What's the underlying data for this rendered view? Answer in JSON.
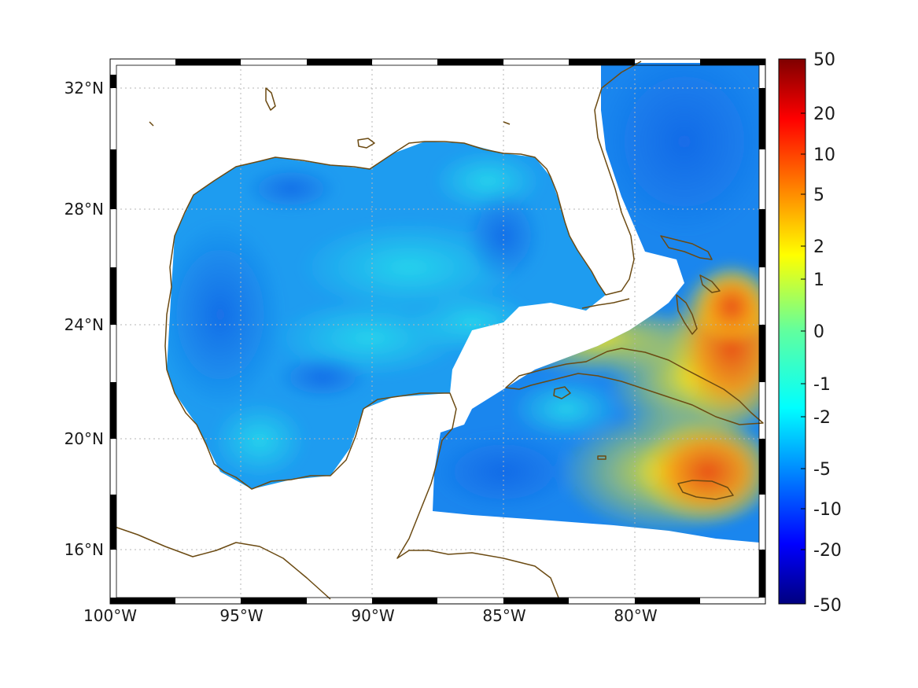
{
  "map": {
    "region": "Gulf of Mexico and western Caribbean",
    "longitude_labels": [
      "100°W",
      "95°W",
      "90°W",
      "85°W",
      "80°W"
    ],
    "latitude_labels": [
      "32°N",
      "28°N",
      "24°N",
      "20°N",
      "16°N"
    ],
    "coastline_color": "#6b4a12",
    "grid": "dotted",
    "frame": "alternating black-white border"
  },
  "colorbar": {
    "labels": [
      "50",
      "20",
      "10",
      "5",
      "2",
      "1",
      "0",
      "-1",
      "-2",
      "-5",
      "-10",
      "-20",
      "-50"
    ],
    "colormap": "jet"
  },
  "colors": {
    "deep_blue": "#0a5fe8",
    "mid_blue": "#1b8cf5",
    "cyan": "#1fd6f0",
    "yellow": "#f3e51c",
    "orange": "#f07a14",
    "red_orange": "#e9541a"
  }
}
